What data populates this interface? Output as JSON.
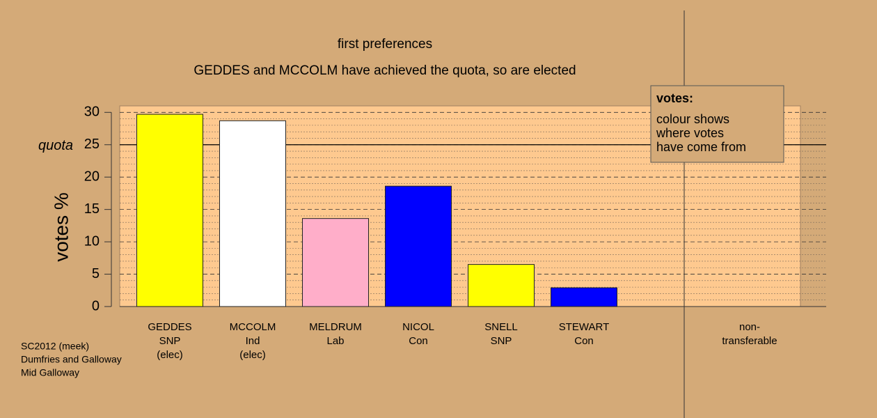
{
  "chart_data": {
    "type": "bar",
    "title": "first preferences",
    "subtitle": "GEDDES and MCCOLM have achieved the quota, so are elected",
    "y_label": "votes %",
    "categories": [
      "GEDDES",
      "MCCOLM",
      "MELDRUM",
      "NICOL",
      "SNELL",
      "STEWART",
      "non-transferable"
    ],
    "parties": [
      "SNP",
      "Ind",
      "Lab",
      "Con",
      "SNP",
      "Con",
      null
    ],
    "status": [
      "(elec)",
      "(elec)",
      null,
      null,
      null,
      null,
      null
    ],
    "values": [
      29.7,
      28.7,
      13.6,
      18.6,
      6.5,
      2.9,
      0
    ],
    "colors": [
      "#ffff00",
      "#ffffff",
      "#ffaec9",
      "#0000ff",
      "#ffff00",
      "#0000ff",
      "#d4aa78"
    ],
    "quota": {
      "label": "quota",
      "value": 25
    },
    "ylim": [
      0,
      31
    ],
    "yticks": [
      0,
      5,
      10,
      15,
      20,
      25,
      30
    ],
    "grid": true,
    "minor_grid_step": 1,
    "legend": {
      "title": "votes:",
      "text": [
        "colour shows",
        "where votes",
        "have come from"
      ]
    },
    "footnote": [
      "SC2012 (meek)",
      "Dumfries and Galloway",
      "Mid Galloway"
    ]
  }
}
